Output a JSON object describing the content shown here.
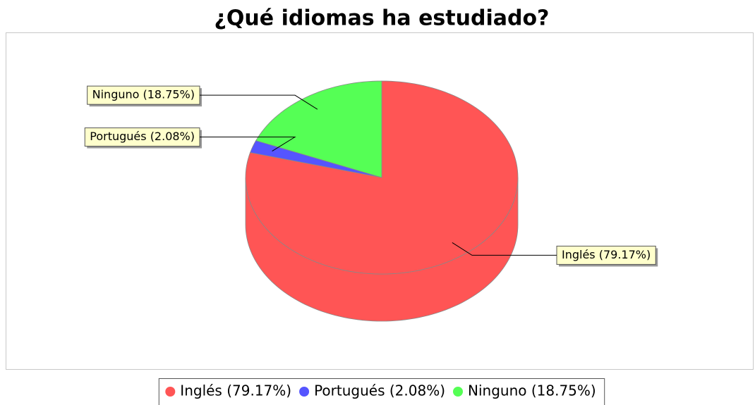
{
  "chart_data": {
    "type": "pie",
    "title": "¿Qué idiomas ha estudiado?",
    "values": [
      79.17,
      2.08,
      18.75
    ],
    "value_labels": [
      "Inglés (79.17%)",
      "Portugués (2.08%)",
      "Ninguno (18.75%)"
    ],
    "colors": [
      "#ff5555",
      "#5555ff",
      "#55ff55"
    ],
    "legend": "bottom"
  }
}
